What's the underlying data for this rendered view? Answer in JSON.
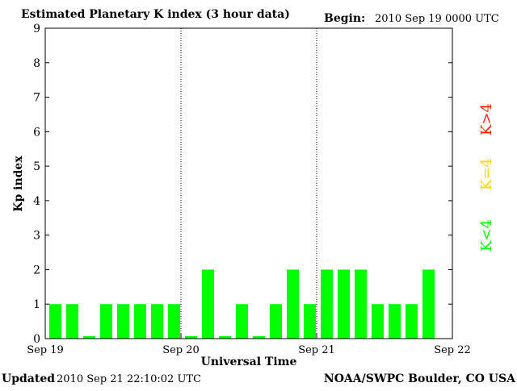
{
  "header": {
    "title": "Estimated Planetary K index (3 hour data)",
    "begin_label": "Begin:",
    "begin_value": "2010 Sep 19 0000 UTC"
  },
  "footer": {
    "updated_label": "Updated",
    "updated_value": "2010 Sep 21 22:10:02 UTC",
    "source": "NOAA/SWPC Boulder, CO USA"
  },
  "legend": {
    "items": [
      {
        "label": "K<4",
        "color": "#00ff00"
      },
      {
        "label": "K=4",
        "color": "#ffd700"
      },
      {
        "label": "K>4",
        "color": "#ff2000"
      }
    ]
  },
  "chart_data": {
    "type": "bar",
    "title": "Estimated Planetary K index (3 hour data)",
    "xlabel": "Universal Time",
    "ylabel": "Kp index",
    "ylim": [
      0,
      9
    ],
    "yticks": [
      0,
      1,
      2,
      3,
      4,
      5,
      6,
      7,
      8,
      9
    ],
    "xtick_labels": [
      "Sep 19",
      "Sep 20",
      "Sep 21",
      "Sep 22"
    ],
    "day_separators": [
      "Sep 20",
      "Sep 21"
    ],
    "bar_interval_hours": 3,
    "grid": false,
    "series": [
      {
        "values": [
          1,
          1,
          0,
          1,
          1,
          1,
          1,
          1,
          0,
          2,
          0,
          1,
          0,
          1,
          2,
          1,
          2,
          2,
          2,
          1,
          1,
          1,
          2
        ],
        "color": "#00ff00"
      }
    ]
  }
}
